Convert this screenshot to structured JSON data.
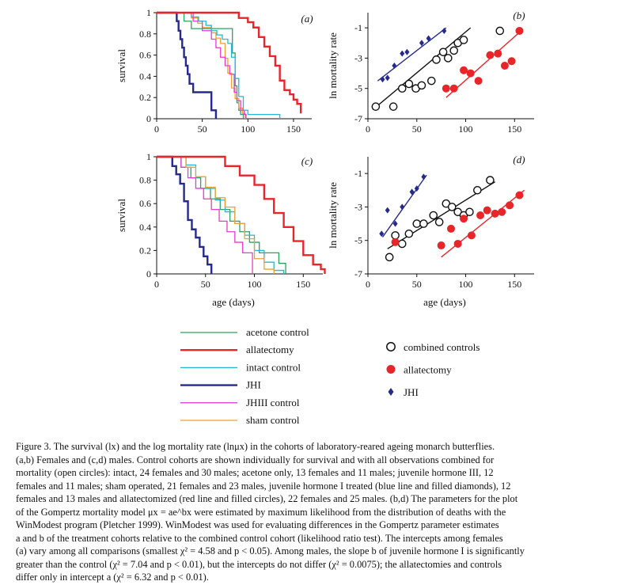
{
  "figure": {
    "x_axis_label": "age (days)",
    "survival_axis_label": "survival",
    "mortality_axis_label": "ln mortality rate",
    "panel_labels": [
      "(a)",
      "(b)",
      "(c)",
      "(d)"
    ]
  },
  "colors": {
    "acetone_control": "#2ca25f",
    "allatectomy": "#e8262a",
    "intact_control": "#27b6d8",
    "JHI": "#262a8c",
    "JHIII_control": "#e83ad0",
    "sham_control": "#f0a030",
    "combined_controls": "#111111"
  },
  "legend": {
    "lines": [
      {
        "key": "acetone_control",
        "label": "acetone control"
      },
      {
        "key": "allatectomy",
        "label": "allatectomy"
      },
      {
        "key": "intact_control",
        "label": "intact control"
      },
      {
        "key": "JHI",
        "label": "JHI"
      },
      {
        "key": "JHIII_control",
        "label": "JHIII control"
      },
      {
        "key": "sham_control",
        "label": "sham control"
      }
    ],
    "markers": [
      {
        "key": "combined_controls",
        "label": "combined controls",
        "marker": "open-circle"
      },
      {
        "key": "allatectomy",
        "label": "allatectomy",
        "marker": "filled-circle"
      },
      {
        "key": "JHI",
        "label": "JHI",
        "marker": "diamond"
      }
    ]
  },
  "chart_data": [
    {
      "panel": "(a)",
      "type": "line",
      "sex": "females",
      "xlabel": "",
      "ylabel": "survival",
      "xlim": [
        0,
        170
      ],
      "ylim": [
        0,
        1
      ],
      "xticks": [
        0,
        50,
        100,
        150
      ],
      "yticks": [
        0,
        0.2,
        0.4,
        0.6,
        0.8,
        1
      ],
      "series": [
        {
          "key": "JHI",
          "name": "JHI",
          "x": [
            0,
            20,
            22,
            24,
            26,
            28,
            30,
            32,
            34,
            36,
            38,
            40,
            44,
            48,
            50,
            60,
            65
          ],
          "y": [
            1,
            1,
            0.92,
            0.83,
            0.75,
            0.67,
            0.58,
            0.5,
            0.42,
            0.33,
            0.33,
            0.25,
            0.25,
            0.25,
            0.25,
            0.08,
            0
          ]
        },
        {
          "key": "acetone_control",
          "name": "acetone control",
          "x": [
            0,
            22,
            30,
            38,
            45,
            50,
            55,
            60,
            65,
            70,
            75,
            80,
            83,
            86,
            88,
            90,
            92,
            95
          ],
          "y": [
            1,
            1,
            0.92,
            0.85,
            0.85,
            0.85,
            0.85,
            0.85,
            0.85,
            0.85,
            0.85,
            0.85,
            0.62,
            0.31,
            0.15,
            0.08,
            0.04,
            0
          ]
        },
        {
          "key": "sham_control",
          "name": "sham control",
          "x": [
            0,
            30,
            38,
            45,
            50,
            55,
            60,
            65,
            70,
            75,
            78,
            82,
            86,
            90,
            94,
            97
          ],
          "y": [
            1,
            1,
            0.95,
            0.9,
            0.86,
            0.86,
            0.81,
            0.76,
            0.71,
            0.57,
            0.43,
            0.29,
            0.19,
            0.1,
            0.05,
            0
          ]
        },
        {
          "key": "JHIII_control",
          "name": "JHIII control",
          "x": [
            0,
            25,
            40,
            50,
            55,
            60,
            65,
            70,
            75,
            80,
            85,
            88,
            92,
            96,
            98
          ],
          "y": [
            1,
            1,
            0.92,
            0.83,
            0.83,
            0.75,
            0.67,
            0.58,
            0.5,
            0.42,
            0.25,
            0.17,
            0.08,
            0.04,
            0
          ]
        },
        {
          "key": "intact_control",
          "name": "intact control",
          "x": [
            0,
            28,
            38,
            46,
            54,
            60,
            66,
            72,
            78,
            82,
            86,
            90,
            95,
            100,
            115,
            130,
            135
          ],
          "y": [
            1,
            1,
            0.96,
            0.92,
            0.88,
            0.83,
            0.79,
            0.75,
            0.71,
            0.58,
            0.38,
            0.21,
            0.08,
            0.04,
            0.04,
            0.04,
            0
          ]
        },
        {
          "key": "allatectomy",
          "name": "allatectomy",
          "x": [
            0,
            80,
            90,
            100,
            106,
            112,
            118,
            124,
            130,
            135,
            140,
            146,
            150,
            154,
            158
          ],
          "y": [
            1,
            1,
            0.95,
            0.91,
            0.86,
            0.77,
            0.68,
            0.59,
            0.5,
            0.36,
            0.27,
            0.23,
            0.18,
            0.14,
            0.05
          ]
        }
      ]
    },
    {
      "panel": "(b)",
      "type": "scatter",
      "sex": "females",
      "xlabel": "",
      "ylabel": "ln mortality rate",
      "xlim": [
        0,
        170
      ],
      "ylim": [
        -7,
        0
      ],
      "xticks": [
        0,
        50,
        100,
        150
      ],
      "yticks": [
        -7,
        -5,
        -3,
        -1
      ],
      "series": [
        {
          "key": "JHI",
          "name": "JHI",
          "marker": "diamond",
          "x": [
            15,
            20,
            27,
            35,
            40,
            55,
            62,
            78
          ],
          "y": [
            -4.4,
            -4.3,
            -3.5,
            -2.7,
            -2.6,
            -2.0,
            -1.7,
            -1.2
          ],
          "fit": {
            "x": [
              10,
              80
            ],
            "y": [
              -4.5,
              -1.0
            ]
          }
        },
        {
          "key": "combined_controls",
          "name": "combined controls",
          "marker": "open-circle",
          "x": [
            8,
            26,
            35,
            42,
            49,
            55,
            65,
            70,
            77,
            82,
            88,
            92,
            98,
            135
          ],
          "y": [
            -6.2,
            -6.2,
            -5.0,
            -4.7,
            -5.0,
            -4.8,
            -4.5,
            -3.1,
            -2.6,
            -3.0,
            -2.5,
            -2.0,
            -1.8,
            -1.2
          ],
          "fit": {
            "x": [
              5,
              105
            ],
            "y": [
              -6.4,
              -1.0
            ]
          }
        },
        {
          "key": "allatectomy",
          "name": "allatectomy",
          "marker": "filled-circle",
          "x": [
            80,
            88,
            98,
            105,
            113,
            125,
            133,
            140,
            147,
            155
          ],
          "y": [
            -5.0,
            -5.0,
            -3.8,
            -4.0,
            -4.5,
            -2.8,
            -2.7,
            -3.5,
            -3.2,
            -1.2
          ],
          "fit": {
            "x": [
              80,
              155
            ],
            "y": [
              -5.6,
              -1.3
            ]
          }
        }
      ]
    },
    {
      "panel": "(c)",
      "type": "line",
      "sex": "males",
      "xlabel": "age (days)",
      "ylabel": "survival",
      "xlim": [
        0,
        170
      ],
      "ylim": [
        0,
        1
      ],
      "xticks": [
        0,
        50,
        100,
        150
      ],
      "yticks": [
        0,
        0.2,
        0.4,
        0.6,
        0.8,
        1
      ],
      "series": [
        {
          "key": "JHI",
          "name": "JHI",
          "x": [
            0,
            12,
            16,
            20,
            24,
            28,
            32,
            36,
            40,
            44,
            48,
            52,
            56
          ],
          "y": [
            1,
            1,
            0.92,
            0.85,
            0.77,
            0.62,
            0.46,
            0.38,
            0.31,
            0.23,
            0.15,
            0.08,
            0
          ]
        },
        {
          "key": "acetone_control",
          "name": "acetone control",
          "x": [
            0,
            15,
            25,
            35,
            45,
            55,
            65,
            75,
            85,
            95,
            105,
            115,
            125,
            132
          ],
          "y": [
            1,
            1,
            0.91,
            0.82,
            0.73,
            0.64,
            0.55,
            0.45,
            0.36,
            0.27,
            0.18,
            0.18,
            0.09,
            0
          ]
        },
        {
          "key": "intact_control",
          "name": "intact control",
          "x": [
            0,
            20,
            30,
            40,
            50,
            60,
            70,
            80,
            90,
            100,
            110,
            120,
            130
          ],
          "y": [
            1,
            1,
            0.93,
            0.83,
            0.73,
            0.63,
            0.53,
            0.43,
            0.33,
            0.2,
            0.1,
            0.03,
            0
          ]
        },
        {
          "key": "JHIII_control",
          "name": "JHIII control",
          "x": [
            0,
            18,
            25,
            32,
            40,
            48,
            56,
            64,
            72,
            80,
            88,
            98
          ],
          "y": [
            1,
            1,
            0.91,
            0.82,
            0.73,
            0.64,
            0.55,
            0.45,
            0.36,
            0.27,
            0.18,
            0
          ]
        },
        {
          "key": "sham_control",
          "name": "sham control",
          "x": [
            0,
            20,
            30,
            40,
            50,
            60,
            70,
            80,
            90,
            100,
            110,
            120
          ],
          "y": [
            1,
            1,
            0.91,
            0.83,
            0.74,
            0.65,
            0.57,
            0.43,
            0.3,
            0.13,
            0.04,
            0
          ]
        },
        {
          "key": "allatectomy",
          "name": "allatectomy",
          "x": [
            0,
            55,
            70,
            85,
            100,
            110,
            120,
            130,
            140,
            150,
            160,
            168,
            172
          ],
          "y": [
            1,
            1,
            0.92,
            0.84,
            0.76,
            0.64,
            0.52,
            0.4,
            0.28,
            0.16,
            0.08,
            0.04,
            0
          ]
        }
      ]
    },
    {
      "panel": "(d)",
      "type": "scatter",
      "sex": "males",
      "xlabel": "age (days)",
      "ylabel": "ln mortality rate",
      "xlim": [
        0,
        170
      ],
      "ylim": [
        -7,
        0
      ],
      "xticks": [
        0,
        50,
        100,
        150
      ],
      "yticks": [
        -7,
        -5,
        -3,
        -1
      ],
      "series": [
        {
          "key": "JHI",
          "name": "JHI",
          "marker": "diamond",
          "x": [
            14,
            20,
            28,
            35,
            45,
            50,
            57
          ],
          "y": [
            -4.6,
            -3.2,
            -4.0,
            -3.0,
            -2.1,
            -1.9,
            -1.2
          ],
          "fit": {
            "x": [
              15,
              60
            ],
            "y": [
              -4.8,
              -1.1
            ]
          }
        },
        {
          "key": "combined_controls",
          "name": "combined controls",
          "marker": "open-circle",
          "x": [
            22,
            28,
            35,
            42,
            50,
            57,
            67,
            73,
            80,
            86,
            92,
            98,
            104,
            112,
            125
          ],
          "y": [
            -6.0,
            -4.7,
            -5.2,
            -4.6,
            -4.0,
            -4.0,
            -3.5,
            -3.9,
            -2.8,
            -3.0,
            -3.3,
            -3.5,
            -3.3,
            -2.0,
            -1.4
          ],
          "fit": {
            "x": [
              20,
              130
            ],
            "y": [
              -5.5,
              -1.5
            ]
          }
        },
        {
          "key": "allatectomy",
          "name": "allatectomy",
          "marker": "filled-circle",
          "x": [
            28,
            75,
            85,
            92,
            98,
            106,
            115,
            122,
            130,
            137,
            145,
            155
          ],
          "y": [
            -5.1,
            -5.3,
            -4.3,
            -5.2,
            -3.7,
            -4.7,
            -3.5,
            -3.2,
            -3.4,
            -3.3,
            -2.9,
            -2.3
          ],
          "fit": {
            "x": [
              75,
              160
            ],
            "y": [
              -6.0,
              -2.0
            ]
          }
        }
      ]
    }
  ],
  "caption": {
    "full_text": "Figure 3. The survival (lx) and the log mortality rate (lnμx) in the cohorts of laboratory-reared ageing monarch butterflies. (a,b) Females and (c,d) males. Control cohorts are shown individually for survival and with all observations combined for mortality (open circles): intact, 24 females and 30 males; acetone only, 13 females and 11 males; juvenile hormone III, 12 females and 11 males; sham operated, 21 females and 23 males, juvenile hormone I treated (blue line and filled diamonds), 12 females and 13 males and allatectomized (red line and filled circles), 22 females and 25 males. (b,d) The parameters for the plot of the Gompertz mortality model μx = ae^bx were estimated by maximum likelihood from the distribution of deaths with the WinModest program (Pletcher 1999). WinModest was used for evaluating differences in the Gompertz parameter estimates a and b of the treatment cohorts relative to the combined control cohort (likelihood ratio test). The intercepts among females (a) vary among all comparisons (smallest χ² = 4.58 and p < 0.05). Among males, the slope b of juvenile hormone I is significantly greater than the control (χ² = 7.04 and p < 0.01), but the intercepts do not differ (χ² = 0.0075); the allatectomies and controls differ only in intercept a (χ² = 6.32 and p < 0.01).",
    "lines": [
      "Figure 3.  The survival (lx) and the log mortality rate (lnμx) in the cohorts of laboratory-reared ageing monarch butterflies.",
      "(a,b) Females and (c,d) males. Control cohorts are shown individually for survival and with all observations combined for",
      "mortality (open circles): intact, 24 females and 30 males; acetone only, 13 females and 11 males; juvenile hormone III, 12",
      "females and 11 males; sham operated, 21 females and 23 males, juvenile hormone I treated (blue line and filled diamonds), 12",
      "females and 13 males and allatectomized (red line and filled circles), 22 females and 25 males. (b,d) The parameters for the plot",
      "of the Gompertz mortality model μx = ae^bx were estimated by maximum likelihood from the distribution of deaths with the",
      "WinModest program (Pletcher 1999). WinModest was used for evaluating differences in the Gompertz parameter estimates",
      "a and b of the treatment cohorts relative to the combined control cohort (likelihood ratio test). The intercepts among females",
      "(a) vary among all comparisons (smallest χ² = 4.58 and p < 0.05). Among males, the slope b of juvenile hormone I is significantly",
      "greater than the control (χ² = 7.04 and p < 0.01), but the intercepts do not differ (χ² = 0.0075); the allatectomies and controls",
      "differ only in intercept a (χ² = 6.32 and p < 0.01)."
    ]
  }
}
